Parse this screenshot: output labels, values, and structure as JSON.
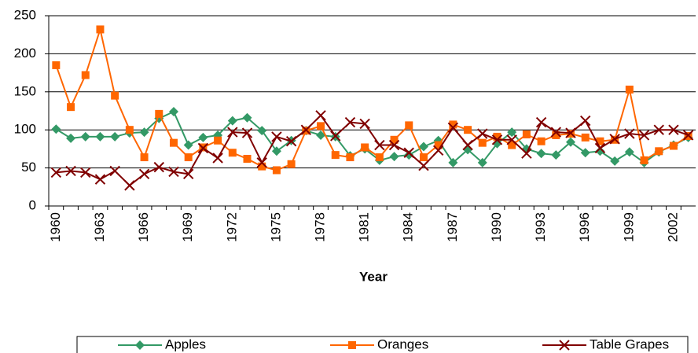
{
  "chart_data": {
    "type": "line",
    "xlabel": "Year",
    "categories": [
      "1960",
      null,
      null,
      "1963",
      null,
      null,
      "1966",
      null,
      null,
      "1969",
      null,
      null,
      "1972",
      null,
      null,
      "1975",
      null,
      null,
      "1978",
      null,
      null,
      "1981",
      null,
      null,
      "1984",
      null,
      null,
      "1987",
      null,
      null,
      "1990",
      null,
      null,
      "1993",
      null,
      null,
      "1996",
      null,
      null,
      "1999",
      null,
      null,
      "2002",
      null
    ],
    "series": [
      {
        "name": "Apples",
        "color": "#339966",
        "marker": "diamond",
        "values": [
          101,
          89,
          91,
          91,
          91,
          96,
          97,
          115,
          124,
          80,
          90,
          93,
          112,
          116,
          99,
          72,
          86,
          99,
          93,
          91,
          66,
          75,
          60,
          65,
          67,
          78,
          86,
          57,
          74,
          57,
          82,
          97,
          75,
          69,
          67,
          84,
          70,
          72,
          59,
          71,
          57,
          71,
          80,
          90
        ]
      },
      {
        "name": "Oranges",
        "color": "#ff6600",
        "marker": "square",
        "values": [
          185,
          130,
          172,
          232,
          145,
          100,
          64,
          121,
          83,
          64,
          77,
          86,
          70,
          62,
          52,
          47,
          55,
          99,
          105,
          67,
          64,
          77,
          64,
          87,
          106,
          64,
          80,
          107,
          100,
          83,
          91,
          80,
          94,
          85,
          93,
          95,
          90,
          85,
          87,
          153,
          60,
          72,
          79,
          92
        ]
      },
      {
        "name": "Table Grapes",
        "color": "#800000",
        "marker": "x",
        "values": [
          44,
          46,
          44,
          35,
          46,
          27,
          42,
          51,
          45,
          42,
          76,
          63,
          97,
          96,
          57,
          91,
          85,
          100,
          119,
          92,
          110,
          108,
          80,
          80,
          70,
          53,
          73,
          103,
          80,
          95,
          87,
          87,
          69,
          110,
          97,
          96,
          112,
          76,
          88,
          95,
          93,
          100,
          100,
          93
        ]
      }
    ],
    "ylim": [
      0,
      250
    ],
    "yticks": [
      0,
      50,
      100,
      150,
      200,
      250
    ],
    "grid": true,
    "legend": "bottom"
  }
}
